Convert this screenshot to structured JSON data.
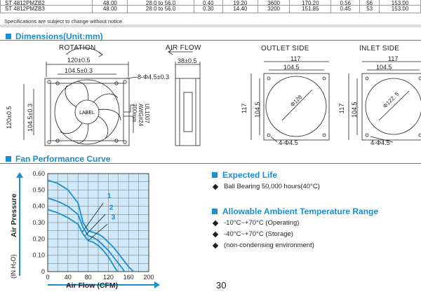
{
  "spec_table": {
    "rows": [
      {
        "model": "ST 4812PMZB2",
        "voltage": "48.00",
        "range": "28.0 to 56.0",
        "current": "0.40",
        "power": "19.20",
        "speed": "3600",
        "airflow": "170.20",
        "pressure": "0.56",
        "noise": "56",
        "weight": "153.00"
      },
      {
        "model": "ST 4812PMZB3",
        "voltage": "48.00",
        "range": "28.0 to 56.0",
        "current": "0.30",
        "power": "14.40",
        "speed": "3200",
        "airflow": "151.85",
        "pressure": "0.45",
        "noise": "53",
        "weight": "153.00"
      }
    ],
    "note": "Specifications are subject to change without notice."
  },
  "dimensions": {
    "title": "Dimensions(Unit:mm)",
    "rotation_label": "ROTATION",
    "airflow_label": "AIR FLOW",
    "outlet_label": "OUTLET SIDE",
    "inlet_label": "INLET SIDE",
    "front": {
      "dim_top_outer": "120±0.5",
      "dim_top_inner": "104.5±0.3",
      "dim_hole": "8-Φ4.5±0.3",
      "dim_left_outer": "120±0.5",
      "dim_left_inner": "104.5±0.3",
      "hub_label": "LABEL",
      "wire_spec": "UL1007\nAWG#24\n300mm"
    },
    "side": {
      "dim_depth": "38±0.5"
    },
    "outlet": {
      "dim_top_outer": "117",
      "dim_top_inner": "104.5",
      "dim_left_outer": "117",
      "dim_left_inner": "104.5",
      "dim_circle": "Φ128",
      "dim_holes": "4-Φ4.5"
    },
    "inlet": {
      "dim_top_outer": "117",
      "dim_top_inner": "104.5",
      "dim_left_outer": "117",
      "dim_left_inner": "104.5",
      "dim_circle": "Φ122. 5",
      "dim_holes": "4-Φ4.5"
    }
  },
  "performance": {
    "title": "Fan Performance Curve"
  },
  "chart_data": {
    "type": "line",
    "xlabel": "Air Flow (CFM)",
    "ylabel": "Air Pressure",
    "ylabel_unit": "(IN H₂O)",
    "xlim": [
      0,
      200
    ],
    "ylim": [
      0,
      0.6
    ],
    "x_ticks": [
      "0",
      "40",
      "80",
      "120",
      "160",
      "200"
    ],
    "y_ticks": [
      "0",
      "0.10",
      "0.20",
      "0.30",
      "0.40",
      "0.50",
      "0.60"
    ],
    "grid": true,
    "series": [
      {
        "name": "1",
        "x": [
          0,
          20,
          40,
          60,
          70,
          80,
          90,
          100,
          110,
          120,
          130,
          140,
          150,
          160,
          170
        ],
        "y": [
          0.56,
          0.54,
          0.5,
          0.42,
          0.3,
          0.25,
          0.24,
          0.23,
          0.21,
          0.18,
          0.15,
          0.11,
          0.07,
          0.03,
          0.0
        ]
      },
      {
        "name": "2",
        "x": [
          0,
          20,
          40,
          60,
          70,
          80,
          90,
          100,
          110,
          120,
          130,
          140,
          150,
          152
        ],
        "y": [
          0.45,
          0.43,
          0.4,
          0.35,
          0.27,
          0.22,
          0.21,
          0.19,
          0.16,
          0.13,
          0.09,
          0.05,
          0.01,
          0.0
        ]
      },
      {
        "name": "3",
        "x": [
          0,
          20,
          40,
          60,
          70,
          80,
          90,
          100,
          110,
          120,
          130,
          138
        ],
        "y": [
          0.38,
          0.36,
          0.33,
          0.29,
          0.23,
          0.19,
          0.18,
          0.16,
          0.13,
          0.09,
          0.04,
          0.0
        ]
      }
    ],
    "line_color": "#1a8fd0",
    "axis_color": "#1a8fd0"
  },
  "expected_life": {
    "title": "Expected Life",
    "items": [
      "Ball Bearing 50,000 hours(40°C)"
    ]
  },
  "temp_range": {
    "title": "Allowable Ambient Temperature Range",
    "items": [
      "-10°C~+70°C (Operating)",
      "-40°C~+70°C (Storage)",
      "(non-condensing environment)"
    ]
  },
  "page_number": "30"
}
